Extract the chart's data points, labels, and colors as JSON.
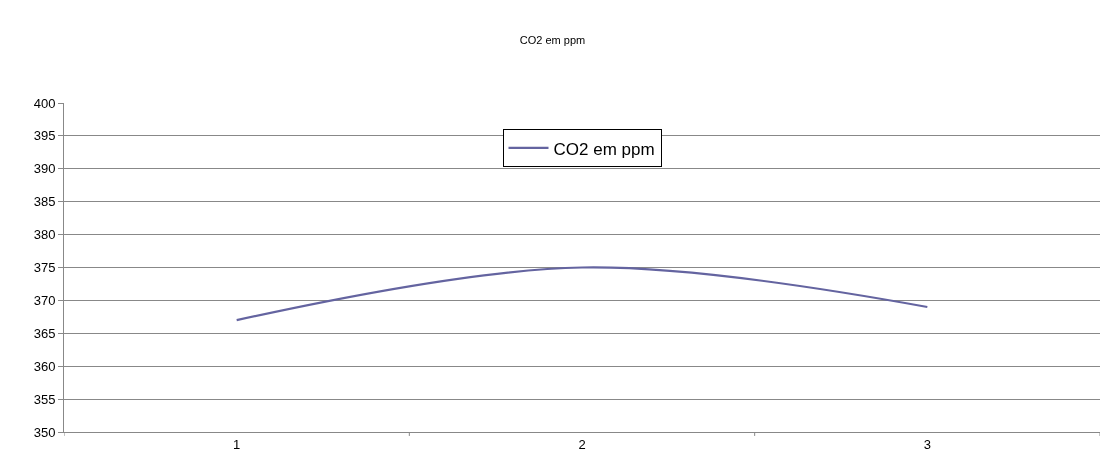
{
  "chart_data": {
    "type": "line",
    "title": "CO2 em ppm",
    "categories": [
      "1",
      "2",
      "3"
    ],
    "series": [
      {
        "name": "CO2 em ppm",
        "color": "#6464a0",
        "values": [
          367,
          375,
          369
        ]
      }
    ],
    "ylim": [
      350,
      400
    ],
    "yticks": [
      350,
      355,
      360,
      365,
      370,
      375,
      380,
      385,
      390,
      395,
      400
    ],
    "grid": "y",
    "legend": "top",
    "marker": "none",
    "line_style": "solid"
  }
}
